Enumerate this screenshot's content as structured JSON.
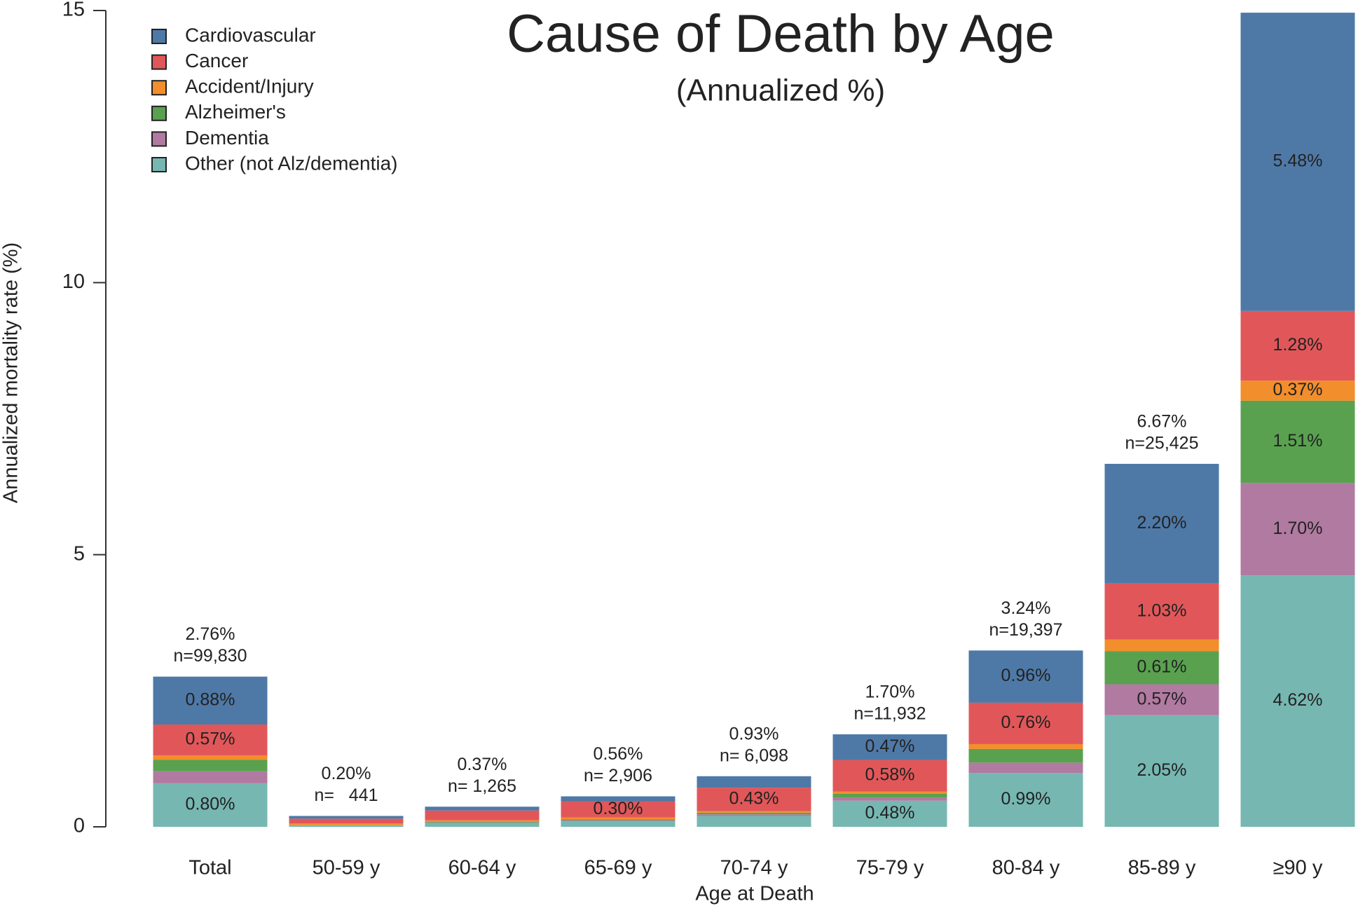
{
  "chart_data": {
    "type": "stacked_bar",
    "title": "Cause of Death by Age",
    "subtitle": "(Annualized %)",
    "x_label": "Age at Death",
    "y_label": "Annualized mortality rate (%)",
    "categories": [
      "Total",
      "50-59 y",
      "60-64 y",
      "65-69 y",
      "70-74 y",
      "75-79 y",
      "80-84 y",
      "85-89 y",
      "≥90 y"
    ],
    "ylim": [
      0,
      15
    ],
    "yticks": [
      0,
      5,
      10,
      15
    ],
    "legend_position": "top-left",
    "series": [
      {
        "name": "Other (not Alz/dementia)",
        "color": "#76b7b2",
        "values": [
          0.8,
          0.03,
          0.07,
          0.1,
          0.2,
          0.48,
          0.99,
          2.05,
          4.62
        ],
        "value_labels": [
          "0.80%",
          null,
          null,
          null,
          null,
          "0.48%",
          "0.99%",
          "2.05%",
          "4.62%"
        ]
      },
      {
        "name": "Dementia",
        "color": "#b07aa1",
        "values": [
          0.22,
          0.0,
          0.01,
          0.02,
          0.03,
          0.06,
          0.19,
          0.57,
          1.7
        ],
        "value_labels": [
          null,
          null,
          null,
          null,
          null,
          null,
          null,
          "0.57%",
          "1.70%"
        ]
      },
      {
        "name": "Alzheimer's",
        "color": "#59a14f",
        "values": [
          0.21,
          0.0,
          0.01,
          0.02,
          0.03,
          0.07,
          0.25,
          0.61,
          1.51
        ],
        "value_labels": [
          null,
          null,
          null,
          null,
          null,
          null,
          null,
          "0.61%",
          "1.51%"
        ]
      },
      {
        "name": "Accident/Injury",
        "color": "#f28e2b",
        "values": [
          0.08,
          0.03,
          0.03,
          0.03,
          0.03,
          0.04,
          0.09,
          0.21,
          0.37
        ],
        "value_labels": [
          null,
          null,
          null,
          null,
          null,
          null,
          null,
          null,
          "0.37%"
        ]
      },
      {
        "name": "Cancer",
        "color": "#e15759",
        "values": [
          0.57,
          0.09,
          0.18,
          0.3,
          0.43,
          0.58,
          0.76,
          1.03,
          1.28
        ],
        "value_labels": [
          "0.57%",
          null,
          null,
          "0.30%",
          "0.43%",
          "0.58%",
          "0.76%",
          "1.03%",
          "1.28%"
        ]
      },
      {
        "name": "Cardiovascular",
        "color": "#4e79a7",
        "values": [
          0.88,
          0.05,
          0.07,
          0.09,
          0.21,
          0.47,
          0.96,
          2.2,
          5.48
        ],
        "value_labels": [
          "0.88%",
          null,
          null,
          null,
          null,
          "0.47%",
          "0.96%",
          "2.20%",
          "5.48%"
        ]
      }
    ],
    "totals": [
      2.76,
      0.2,
      0.37,
      0.56,
      0.93,
      1.7,
      3.24,
      6.67,
      null
    ],
    "total_labels": [
      "2.76%",
      "0.20%",
      "0.37%",
      "0.56%",
      "0.93%",
      "1.70%",
      "3.24%",
      "6.67%",
      null
    ],
    "n_labels": [
      "n=99,830",
      "n=   441",
      "n= 1,265",
      "n= 2,906",
      "n= 6,098",
      "n=11,932",
      "n=19,397",
      "n=25,425",
      null
    ]
  }
}
